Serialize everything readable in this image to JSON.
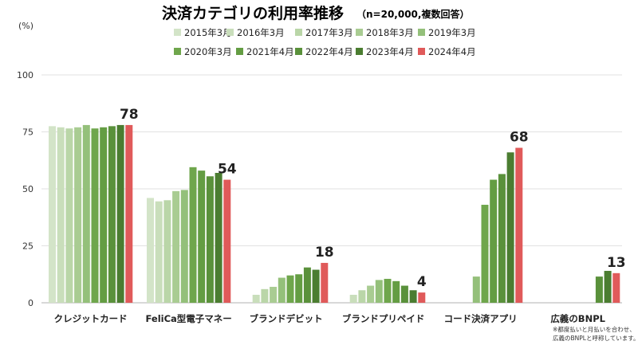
{
  "chart_data": {
    "type": "bar",
    "title": "決済カテゴリの利用率推移",
    "subtitle": "（n=20,000,複数回答）",
    "unit_label": "(%)",
    "ylim": [
      0,
      100
    ],
    "yticks": [
      0,
      25,
      50,
      75,
      100
    ],
    "categories": [
      "クレジットカード",
      "FeliCa型電子マネー",
      "ブランドデビット",
      "ブランドプリペイド",
      "コード決済アプリ",
      "広義のBNPL"
    ],
    "series": [
      {
        "name": "2015年3月",
        "color": "#d3e4c8",
        "values": [
          77.5,
          46,
          null,
          null,
          null,
          null
        ]
      },
      {
        "name": "2016年3月",
        "color": "#c9debb",
        "values": [
          77,
          44.5,
          3.5,
          3.5,
          null,
          null
        ]
      },
      {
        "name": "2017年3月",
        "color": "#bad6a8",
        "values": [
          76.5,
          45,
          6,
          5.5,
          null,
          null
        ]
      },
      {
        "name": "2018年3月",
        "color": "#a9cc92",
        "values": [
          77,
          49,
          7,
          7.5,
          null,
          null
        ]
      },
      {
        "name": "2019年3月",
        "color": "#94c07a",
        "values": [
          78,
          49.5,
          11,
          10,
          11.5,
          null
        ]
      },
      {
        "name": "2020年3月",
        "color": "#6fa64c",
        "values": [
          76.5,
          59.5,
          12,
          10.5,
          43,
          null
        ]
      },
      {
        "name": "2021年4月",
        "color": "#649d43",
        "values": [
          77,
          58,
          12.5,
          9.5,
          54,
          null
        ]
      },
      {
        "name": "2022年4月",
        "color": "#5a913b",
        "values": [
          77.5,
          55.5,
          15.5,
          7.5,
          56.5,
          11.5
        ]
      },
      {
        "name": "2023年4月",
        "color": "#4b7d31",
        "values": [
          78,
          57,
          14.5,
          5.5,
          66,
          14
        ]
      },
      {
        "name": "2024年4月",
        "color": "#e05a5a",
        "values": [
          78,
          54,
          17.5,
          4.5,
          68,
          13
        ]
      }
    ],
    "data_labels": [
      "78",
      "54",
      "18",
      "4",
      "68",
      "13"
    ],
    "footnote": [
      "※都度払いと月払いを合わせ、",
      "広義のBNPLと呼称しています。"
    ]
  }
}
